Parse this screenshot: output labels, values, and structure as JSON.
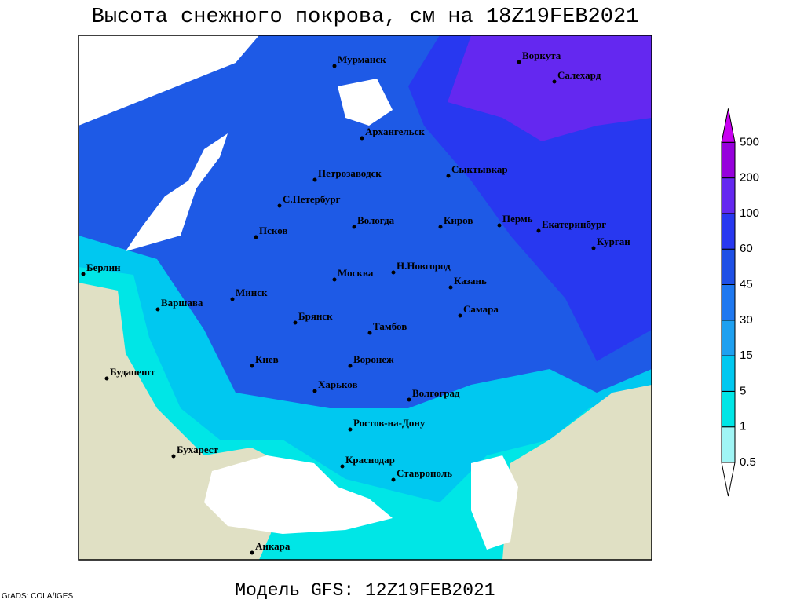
{
  "header": {
    "title": "Высота снежного покрова, см на 18Z19FEB2021"
  },
  "footer": {
    "model": "Модель GFS: 12Z19FEB2021",
    "credit": "GrADS: COLA/IGES"
  },
  "legend": {
    "levels": [
      0.5,
      1,
      5,
      15,
      30,
      45,
      60,
      100,
      200,
      500
    ],
    "colors": [
      "#ffffff",
      "#a0f5f5",
      "#00e6e6",
      "#00c8f0",
      "#1ea0f0",
      "#1e78f0",
      "#1e50e6",
      "#2838f0",
      "#6428f0",
      "#9600dc",
      "#c800f0"
    ]
  },
  "cities": [
    "Мурманск",
    "Воркута",
    "Салехард",
    "Архангельск",
    "Петрозаводск",
    "Сыктывкар",
    "С.Петербург",
    "Вологда",
    "Киров",
    "Пермь",
    "Екатеринбург",
    "Курган",
    "Псков",
    "Берлин",
    "Москва",
    "Н.Новгород",
    "Казань",
    "Минск",
    "Варшава",
    "Брянск",
    "Тамбов",
    "Самара",
    "Киев",
    "Воронеж",
    "Харьков",
    "Будапешт",
    "Волгоград",
    "Ростов-на-Дону",
    "Бухарест",
    "Краснодар",
    "Ставрополь",
    "Анкара"
  ]
}
